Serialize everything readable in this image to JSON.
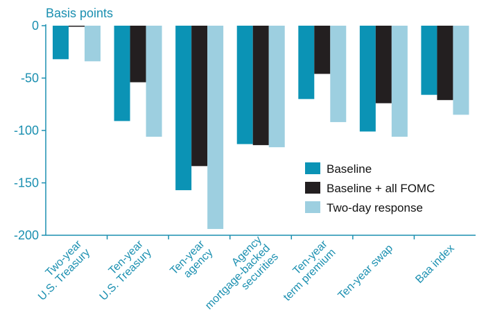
{
  "chart_data": {
    "type": "bar",
    "ylabel": "Basis points",
    "ylim": [
      -200,
      0
    ],
    "yticks": [
      0,
      -50,
      -100,
      -150,
      -200
    ],
    "ytick_labels": [
      "0",
      "-50",
      "-100",
      "-150",
      "-200"
    ],
    "grid": false,
    "legend_position": "lower-right",
    "categories": [
      [
        "Two-year",
        "U.S. Treasury"
      ],
      [
        "Ten-year",
        "U.S. Treasury"
      ],
      [
        "Ten-year",
        "agency"
      ],
      [
        "Agency",
        "mortgage-backed",
        "securities"
      ],
      [
        "Ten-year",
        "term premium"
      ],
      [
        "Ten-year swap"
      ],
      [
        "Baa index"
      ]
    ],
    "series": [
      {
        "name": "Baseline",
        "color": "#0b93b5",
        "values": [
          -32,
          -91,
          -157,
          -113,
          -70,
          -101,
          -66
        ]
      },
      {
        "name": "Baseline + all FOMC",
        "color": "#231f20",
        "values": [
          -1,
          -54,
          -134,
          -114,
          -46,
          -74,
          -71
        ]
      },
      {
        "name": "Two-day response",
        "color": "#9dcfe0",
        "values": [
          -34,
          -106,
          -194,
          -116,
          -92,
          -106,
          -85
        ]
      }
    ],
    "axis_color": "#1a8fb0"
  }
}
